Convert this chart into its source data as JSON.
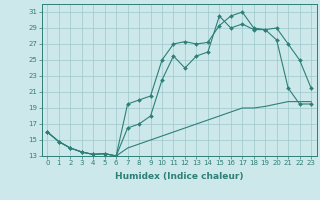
{
  "xlabel": "Humidex (Indice chaleur)",
  "xlim": [
    -0.5,
    23.5
  ],
  "ylim": [
    13,
    32
  ],
  "yticks": [
    13,
    15,
    17,
    19,
    21,
    23,
    25,
    27,
    29,
    31
  ],
  "xticks": [
    0,
    1,
    2,
    3,
    4,
    5,
    6,
    7,
    8,
    9,
    10,
    11,
    12,
    13,
    14,
    15,
    16,
    17,
    18,
    19,
    20,
    21,
    22,
    23
  ],
  "bg_color": "#cce8ea",
  "grid_color": "#9dc8cc",
  "line_color": "#2e7f78",
  "line1_x": [
    0,
    1,
    2,
    3,
    4,
    5,
    6,
    7,
    8,
    9,
    10,
    11,
    12,
    13,
    14,
    15,
    16,
    17,
    18,
    19,
    20,
    21,
    22,
    23
  ],
  "line1_y": [
    16,
    14.8,
    14,
    13.5,
    13.2,
    13.3,
    13.0,
    19.5,
    20.0,
    20.5,
    25.0,
    27.0,
    27.3,
    27.0,
    27.2,
    29.3,
    30.5,
    31.0,
    29.0,
    28.8,
    29.0,
    27.0,
    25.0,
    21.5
  ],
  "line2_x": [
    0,
    1,
    2,
    3,
    4,
    5,
    6,
    7,
    8,
    9,
    10,
    11,
    12,
    13,
    14,
    15,
    16,
    17,
    18,
    19,
    20,
    21,
    22,
    23
  ],
  "line2_y": [
    16,
    14.8,
    14,
    13.5,
    13.2,
    13.3,
    13.0,
    16.5,
    17.0,
    18.0,
    22.5,
    25.5,
    24.0,
    25.5,
    26.0,
    30.5,
    29.0,
    29.5,
    28.8,
    28.8,
    27.5,
    21.5,
    19.5,
    19.5
  ],
  "line3_x": [
    0,
    1,
    2,
    3,
    4,
    5,
    6,
    7,
    8,
    9,
    10,
    11,
    12,
    13,
    14,
    15,
    16,
    17,
    18,
    19,
    20,
    21,
    22,
    23
  ],
  "line3_y": [
    16,
    14.8,
    14,
    13.5,
    13.2,
    13.3,
    13.0,
    14.0,
    14.5,
    15.0,
    15.5,
    16.0,
    16.5,
    17.0,
    17.5,
    18.0,
    18.5,
    19.0,
    19.0,
    19.2,
    19.5,
    19.8,
    19.8,
    19.8
  ],
  "tick_fontsize": 5.0,
  "xlabel_fontsize": 6.5
}
